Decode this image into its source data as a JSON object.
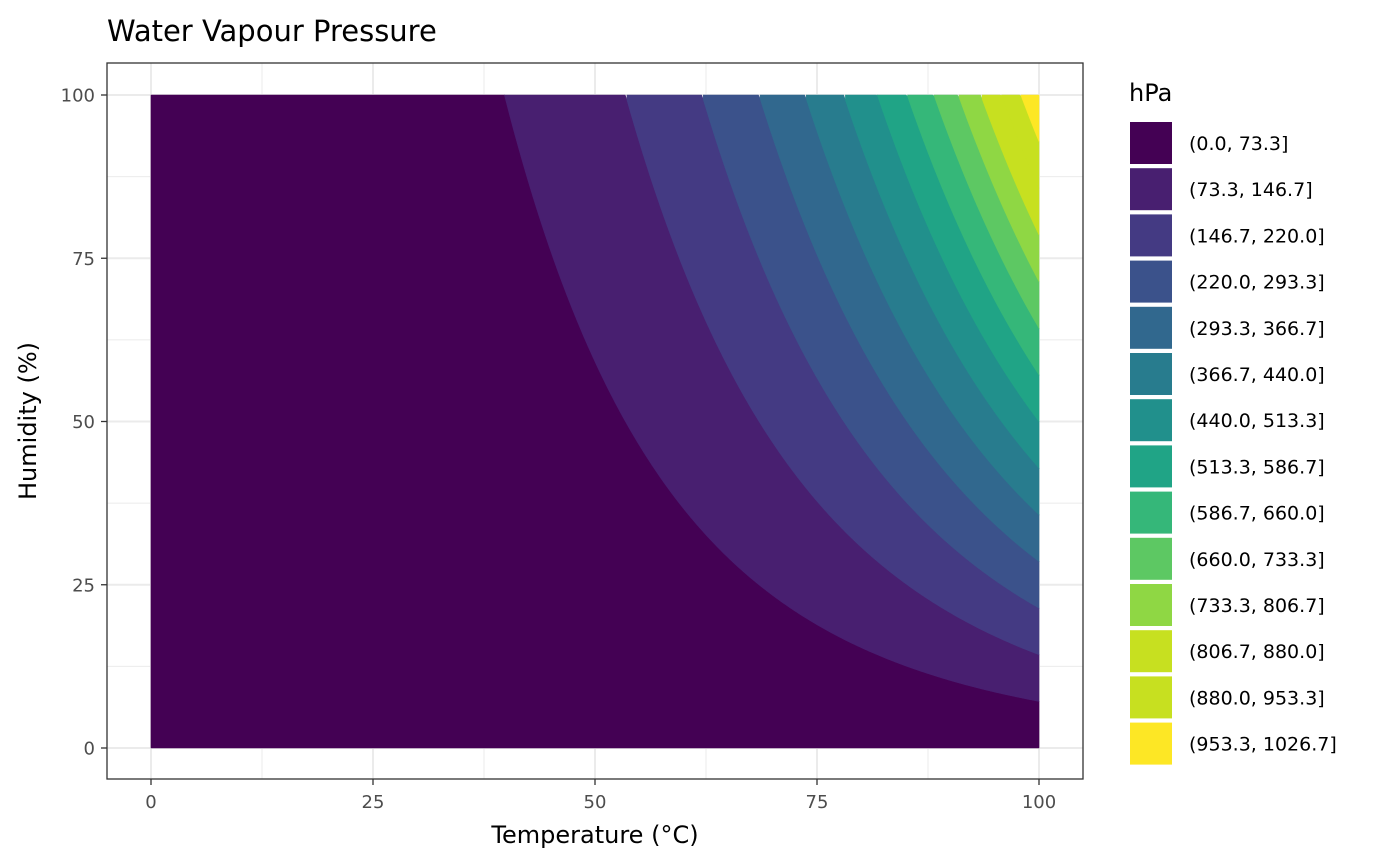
{
  "chart_data": {
    "type": "heatmap",
    "subtype": "filled-contour",
    "title": "Water Vapour Pressure",
    "xlabel": "Temperature (°C)",
    "ylabel": "Humidity (%)",
    "xlim": [
      0,
      100
    ],
    "ylim": [
      0,
      100
    ],
    "x_ticks": [
      0,
      25,
      50,
      75,
      100
    ],
    "y_ticks": [
      0,
      25,
      50,
      75,
      100
    ],
    "x_tick_labels": [
      "0",
      "25",
      "50",
      "75",
      "100"
    ],
    "y_tick_labels": [
      "0",
      "25",
      "50",
      "75",
      "100"
    ],
    "grid": true,
    "legend_position": "right",
    "legend": {
      "title": "hPa",
      "levels": [
        {
          "label": "(0.0, 73.3]",
          "min": 0.0,
          "max": 73.3,
          "color": "#440154"
        },
        {
          "label": "(73.3, 146.7]",
          "min": 73.3,
          "max": 146.7,
          "color": "#481F70"
        },
        {
          "label": "(146.7, 220.0]",
          "min": 146.7,
          "max": 220.0,
          "color": "#443A83"
        },
        {
          "label": "(220.0, 293.3]",
          "min": 220.0,
          "max": 293.3,
          "color": "#3B528B"
        },
        {
          "label": "(293.3, 366.7]",
          "min": 293.3,
          "max": 366.7,
          "color": "#31688E"
        },
        {
          "label": "(366.7, 440.0]",
          "min": 366.7,
          "max": 440.0,
          "color": "#287C8E"
        },
        {
          "label": "(440.0, 513.3]",
          "min": 440.0,
          "max": 513.3,
          "color": "#21908C"
        },
        {
          "label": "(513.3, 586.7]",
          "min": 513.3,
          "max": 586.7,
          "color": "#20A486"
        },
        {
          "label": "(586.7, 660.0]",
          "min": 586.7,
          "max": 660.0,
          "color": "#35B779"
        },
        {
          "label": "(660.0, 733.3]",
          "min": 660.0,
          "max": 733.3,
          "color": "#5DC863"
        },
        {
          "label": "(733.3, 806.7]",
          "min": 733.3,
          "max": 806.7,
          "color": "#8FD744"
        },
        {
          "label": "(806.7, 880.0]",
          "min": 806.7,
          "max": 880.0,
          "color": "#C7E020"
        },
        {
          "label": "(880.0, 953.3]",
          "min": 880.0,
          "max": 953.3,
          "color": "#C7E020"
        },
        {
          "label": "(953.3, 1026.7]",
          "min": 953.3,
          "max": 1026.7,
          "color": "#FDE725"
        }
      ]
    },
    "saturation_pressure_at_max_temperature_hPa": 1026.7
  },
  "colors": {
    "panel_border": "#333333",
    "grid": "#ebebeb",
    "tick_text": "#4d4d4d"
  }
}
